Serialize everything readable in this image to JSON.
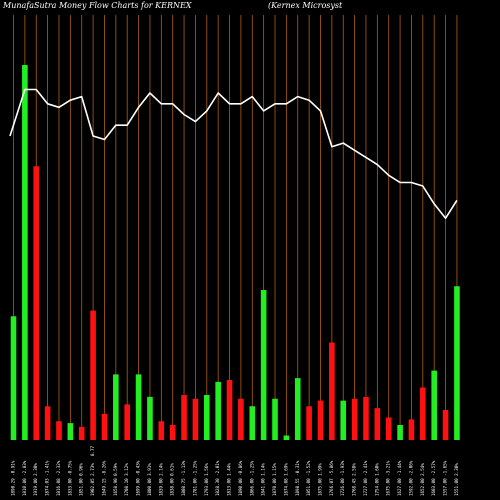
{
  "header": {
    "left_title": "MunafaSutra  Money Flow  Charts for KERNEX",
    "right_title": "(Kernex Microsyst"
  },
  "colors": {
    "background": "#000000",
    "up_bar": "#22ee22",
    "down_bar": "#ff1111",
    "grid": "#b06010",
    "line": "#ffffff"
  },
  "chart_data": {
    "type": "bar",
    "title": "MunafaSutra  Money Flow  Charts for KERNEX",
    "grid": true,
    "categories": [
      "1890.29 -0.91%",
      "1810.80 -2.83%",
      "1919.00 2.30%",
      "1874.03 -1.41%",
      "1816.08 -2.32%",
      "1833.00 -0.75%",
      "1851.00 0.96%",
      "1902.05 2.73%",
      "1649.15 -8.26%",
      "1658.90 0.59%",
      "1708.10 3.12%",
      "1699.00 -0.43%",
      "1800.00 3.91%",
      "1839.00 2.14%",
      "1838.00 0.61%",
      "1808.75 -1.13%",
      "1781.00 -1.25%",
      "1793.00 1.56%",
      "1828.30 -2.01%",
      "1813.00 1.44%",
      "1890.00 -0.86%",
      "1866.00 -1.25%",
      "1841.00 1.14%",
      "1870.00 1.15%",
      "1874.08 1.69%",
      "1898.55 -0.31%",
      "1851.00 -1.52%",
      "1875.00 1.99%",
      "1766.07 -5.86%",
      "1726.00 -1.93%",
      "1768.45 2.58%",
      "1727.00 -2.41%",
      "1754.00 1.60%",
      "1675.00 -3.21%",
      "1627.00 -1.44%",
      "1592.00 -2.06%",
      "1652.00 2.54%",
      "1603.00 -2.57%",
      "1557.00 -1.65%",
      "1551.00 2.30%"
    ],
    "tick_labels": [
      "1890.29 -0.91%",
      "1810.80 -2.83%",
      "1919.00 2.30%",
      "1874.03 -1.41%",
      "1816.08 -2.32%",
      "1833.00 -0.75%",
      "1851.00 0.96%",
      "1902.05 2.73%",
      "1649.15 -8.26%",
      "1658.90 0.59%",
      "1708.10 3.12%",
      "1699.00 -0.43%",
      "1800.00 3.91%",
      "1839.00 2.14%",
      "1838.00 0.61%",
      "1808.75 -1.13%",
      "1781.00 -1.25%",
      "1793.00 1.56%",
      "1828.30 -2.01%",
      "1813.00 1.44%",
      "1890.00 -0.86%",
      "1866.00 -1.25%",
      "1841.00 1.14%",
      "1870.00 1.15%",
      "1874.08 1.69%",
      "1898.55 -0.31%",
      "1851.00 -1.52%",
      "1875.00 1.99%",
      "1766.07 -5.86%",
      "1726.00 -1.93%",
      "1768.45 2.58%",
      "1727.00 -2.41%",
      "1754.00 1.60%",
      "1675.00 -3.21%",
      "1627.00 -1.44%",
      "1592.00 -2.06%",
      "1652.00 2.54%",
      "1603.00 -2.57%",
      "1557.00 -1.65%",
      "1551.00 2.30%"
    ],
    "bar_values": [
      33,
      100,
      73,
      9,
      5,
      4.5,
      3.5,
      34.5,
      7,
      17.5,
      9.5,
      17.5,
      11.5,
      5,
      4,
      12,
      11,
      12,
      15.5,
      16,
      11,
      9,
      40,
      11,
      1.2,
      16.5,
      9,
      10.5,
      26,
      10.5,
      11,
      11.5,
      8.5,
      6,
      4,
      5.5,
      14,
      18.5,
      8,
      41
    ],
    "bar_directions": [
      "up",
      "up",
      "down",
      "down",
      "down",
      "up",
      "down",
      "down",
      "down",
      "up",
      "down",
      "up",
      "up",
      "down",
      "down",
      "down",
      "down",
      "up",
      "up",
      "down",
      "down",
      "up",
      "up",
      "up",
      "up",
      "up",
      "down",
      "down",
      "down",
      "up",
      "down",
      "down",
      "down",
      "down",
      "up",
      "down",
      "down",
      "up",
      "down",
      "up"
    ],
    "price_line": [
      85,
      98,
      98,
      94,
      93,
      95,
      96,
      85,
      84,
      88,
      88,
      93,
      97,
      94,
      94,
      91,
      89,
      92,
      97,
      94,
      94,
      96,
      92,
      94,
      94,
      96,
      95,
      92,
      82,
      83,
      81,
      79,
      77,
      74,
      72,
      72,
      71,
      66,
      62,
      67
    ],
    "ylim": [
      0,
      100
    ],
    "extra_tick_label": "8.77"
  }
}
